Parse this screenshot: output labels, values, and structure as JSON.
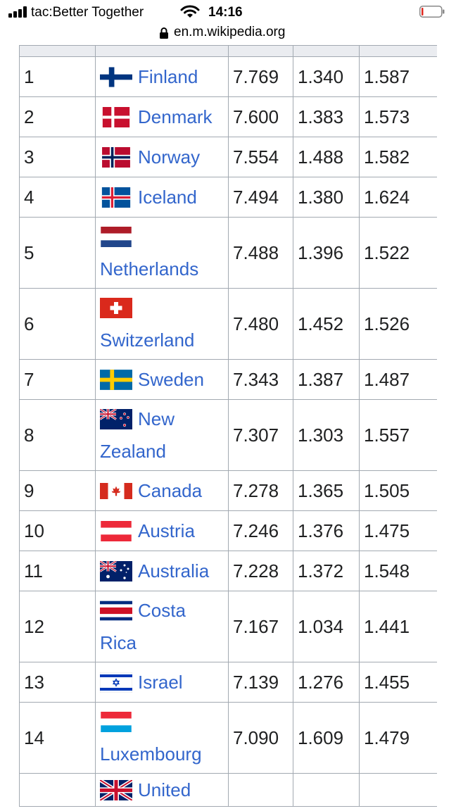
{
  "status_bar": {
    "carrier": "tac:Better Together",
    "time": "14:16"
  },
  "browser": {
    "url": "en.m.wikipedia.org"
  },
  "table": {
    "rows": [
      {
        "rank": "1",
        "country": "Finland",
        "flag": "finland-flag-icon",
        "score": "7.769",
        "gdp": "1.340",
        "social": "1.587"
      },
      {
        "rank": "2",
        "country": "Denmark",
        "flag": "denmark-flag-icon",
        "score": "7.600",
        "gdp": "1.383",
        "social": "1.573"
      },
      {
        "rank": "3",
        "country": "Norway",
        "flag": "norway-flag-icon",
        "score": "7.554",
        "gdp": "1.488",
        "social": "1.582"
      },
      {
        "rank": "4",
        "country": "Iceland",
        "flag": "iceland-flag-icon",
        "score": "7.494",
        "gdp": "1.380",
        "social": "1.624"
      },
      {
        "rank": "5",
        "country": "Netherlands",
        "flag": "netherlands-flag-icon",
        "score": "7.488",
        "gdp": "1.396",
        "social": "1.522"
      },
      {
        "rank": "6",
        "country": "Switzerland",
        "flag": "switzerland-flag-icon",
        "score": "7.480",
        "gdp": "1.452",
        "social": "1.526"
      },
      {
        "rank": "7",
        "country": "Sweden",
        "flag": "sweden-flag-icon",
        "score": "7.343",
        "gdp": "1.387",
        "social": "1.487"
      },
      {
        "rank": "8",
        "country": "New Zealand",
        "flag": "new-zealand-flag-icon",
        "score": "7.307",
        "gdp": "1.303",
        "social": "1.557"
      },
      {
        "rank": "9",
        "country": "Canada",
        "flag": "canada-flag-icon",
        "score": "7.278",
        "gdp": "1.365",
        "social": "1.505"
      },
      {
        "rank": "10",
        "country": "Austria",
        "flag": "austria-flag-icon",
        "score": "7.246",
        "gdp": "1.376",
        "social": "1.475"
      },
      {
        "rank": "11",
        "country": "Australia",
        "flag": "australia-flag-icon",
        "score": "7.228",
        "gdp": "1.372",
        "social": "1.548"
      },
      {
        "rank": "12",
        "country": "Costa Rica",
        "flag": "costa-rica-flag-icon",
        "score": "7.167",
        "gdp": "1.034",
        "social": "1.441"
      },
      {
        "rank": "13",
        "country": "Israel",
        "flag": "israel-flag-icon",
        "score": "7.139",
        "gdp": "1.276",
        "social": "1.455"
      },
      {
        "rank": "14",
        "country": "Luxembourg",
        "flag": "luxembourg-flag-icon",
        "score": "7.090",
        "gdp": "1.609",
        "social": "1.479"
      },
      {
        "rank": "",
        "country": "United",
        "flag": "united-kingdom-flag-icon",
        "score": "",
        "gdp": "",
        "social": ""
      }
    ]
  }
}
